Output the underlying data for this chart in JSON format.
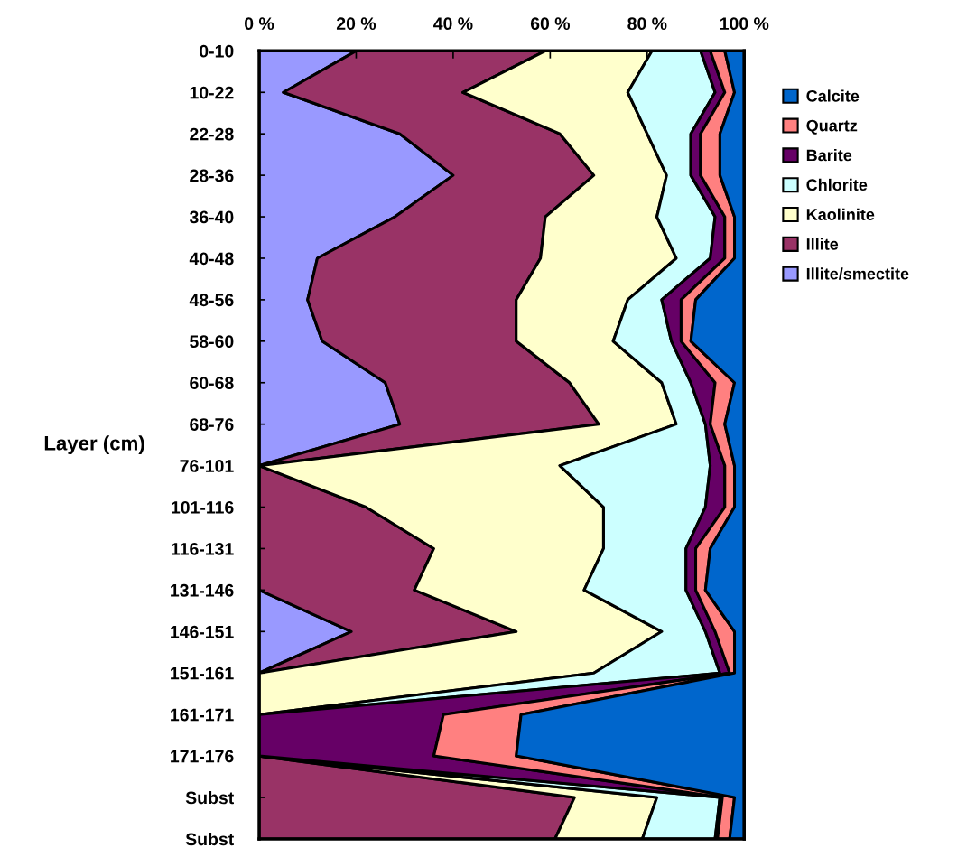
{
  "chart_data": {
    "type": "area",
    "orientation": "horizontal",
    "stacked": true,
    "ylabel": "Layer (cm)",
    "categories": [
      "0-10",
      "10-22",
      "22-28",
      "28-36",
      "36-40",
      "40-48",
      "48-56",
      "58-60",
      "60-68",
      "68-76",
      "76-101",
      "101-116",
      "116-131",
      "131-146",
      "146-151",
      "151-161",
      "161-171",
      "171-176",
      "Subst",
      "Subst"
    ],
    "series": [
      {
        "name": "Illite/smectite",
        "color": "#9999ff",
        "values": [
          20,
          5,
          29,
          40,
          28,
          12,
          10,
          13,
          26,
          29,
          0,
          0,
          0,
          0,
          19,
          0,
          0,
          0,
          0,
          0
        ]
      },
      {
        "name": "Illite",
        "color": "#993366",
        "values": [
          39,
          37,
          33,
          29,
          31,
          46,
          43,
          40,
          38,
          41,
          0,
          22,
          36,
          32,
          34,
          0,
          0,
          0,
          65,
          61
        ]
      },
      {
        "name": "Kaolinite",
        "color": "#ffffcc",
        "values": [
          22,
          34,
          18,
          15,
          23,
          28,
          23,
          20,
          19,
          16,
          62,
          49,
          35,
          35,
          30,
          69,
          0,
          0,
          17,
          18
        ]
      },
      {
        "name": "Chlorite",
        "color": "#ccffff",
        "values": [
          10,
          18,
          9,
          5,
          12,
          7,
          7,
          12,
          6,
          6,
          31,
          21,
          17,
          21,
          9,
          26,
          0,
          0,
          13,
          15
        ]
      },
      {
        "name": "Barite",
        "color": "#660066",
        "values": [
          2,
          2,
          2,
          2,
          2,
          3,
          4,
          2,
          5,
          1,
          3,
          4,
          2,
          2,
          2,
          2,
          38,
          36,
          0.5,
          0.5
        ]
      },
      {
        "name": "Quartz",
        "color": "#ff8080",
        "values": [
          3,
          2,
          4,
          4,
          2,
          2,
          3,
          2,
          4,
          3,
          2,
          2,
          3,
          2,
          4,
          1,
          16,
          17,
          2.5,
          2.5
        ]
      },
      {
        "name": "Calcite",
        "color": "#0066cc",
        "values": [
          4,
          2,
          5,
          5,
          2,
          2,
          10,
          11,
          2,
          4,
          2,
          2,
          7,
          8,
          2,
          2,
          46,
          47,
          2,
          3
        ]
      }
    ],
    "xlim": [
      0,
      100
    ],
    "xticks": [
      {
        "value": 0,
        "label": "0 %"
      },
      {
        "value": 20,
        "label": "20 %"
      },
      {
        "value": 40,
        "label": "40 %"
      },
      {
        "value": 60,
        "label": "60 %"
      },
      {
        "value": 80,
        "label": "80 %"
      },
      {
        "value": 100,
        "label": "100 %"
      }
    ],
    "grid": false,
    "legend": "right"
  }
}
